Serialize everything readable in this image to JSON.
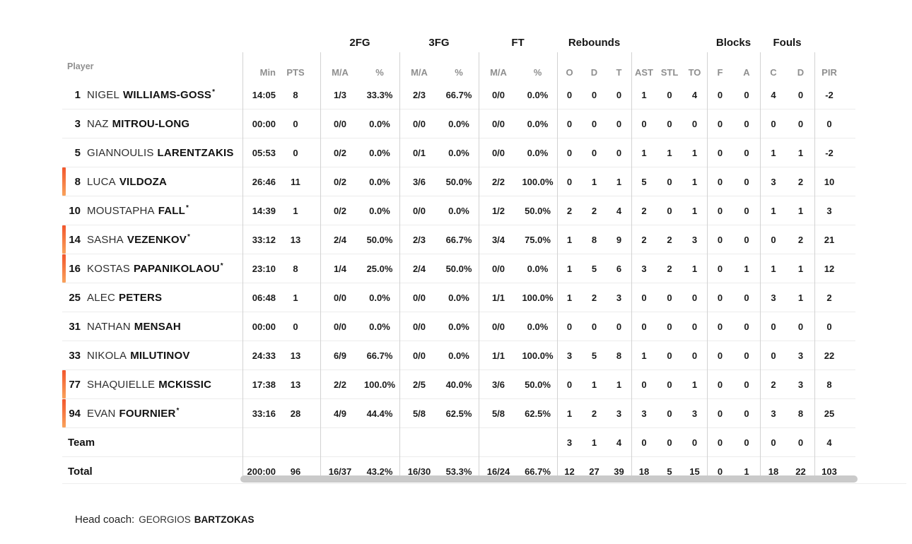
{
  "colors": {
    "accent_gradient_top": "#F2572D",
    "accent_gradient_bottom": "#F9A25C",
    "scrollbar_thumb": "#CACACA"
  },
  "star_symbol": "*",
  "header": {
    "player_label": "Player",
    "groups": [
      "2FG",
      "3FG",
      "FT",
      "Rebounds",
      "Blocks",
      "Fouls"
    ],
    "columns": [
      "Min",
      "PTS",
      "M/A",
      "%",
      "M/A",
      "%",
      "M/A",
      "%",
      "O",
      "D",
      "T",
      "AST",
      "STL",
      "TO",
      "F",
      "A",
      "C",
      "D",
      "PIR"
    ]
  },
  "players": [
    {
      "number": "1",
      "first": "NIGEL",
      "last": "WILLIAMS-GOSS",
      "starter": true,
      "on_court": false,
      "stats": [
        "14:05",
        "8",
        "1/3",
        "33.3%",
        "2/3",
        "66.7%",
        "0/0",
        "0.0%",
        "0",
        "0",
        "0",
        "1",
        "0",
        "4",
        "0",
        "0",
        "4",
        "0",
        "-2"
      ]
    },
    {
      "number": "3",
      "first": "NAZ",
      "last": "MITROU-LONG",
      "starter": false,
      "on_court": false,
      "stats": [
        "00:00",
        "0",
        "0/0",
        "0.0%",
        "0/0",
        "0.0%",
        "0/0",
        "0.0%",
        "0",
        "0",
        "0",
        "0",
        "0",
        "0",
        "0",
        "0",
        "0",
        "0",
        "0"
      ]
    },
    {
      "number": "5",
      "first": "GIANNOULIS",
      "last": "LARENTZAKIS",
      "starter": false,
      "on_court": false,
      "stats": [
        "05:53",
        "0",
        "0/2",
        "0.0%",
        "0/1",
        "0.0%",
        "0/0",
        "0.0%",
        "0",
        "0",
        "0",
        "1",
        "1",
        "1",
        "0",
        "0",
        "1",
        "1",
        "-2"
      ]
    },
    {
      "number": "8",
      "first": "LUCA",
      "last": "VILDOZA",
      "starter": false,
      "on_court": true,
      "stats": [
        "26:46",
        "11",
        "0/2",
        "0.0%",
        "3/6",
        "50.0%",
        "2/2",
        "100.0%",
        "0",
        "1",
        "1",
        "5",
        "0",
        "1",
        "0",
        "0",
        "3",
        "2",
        "10"
      ]
    },
    {
      "number": "10",
      "first": "MOUSTAPHA",
      "last": "FALL",
      "starter": true,
      "on_court": false,
      "stats": [
        "14:39",
        "1",
        "0/2",
        "0.0%",
        "0/0",
        "0.0%",
        "1/2",
        "50.0%",
        "2",
        "2",
        "4",
        "2",
        "0",
        "1",
        "0",
        "0",
        "1",
        "1",
        "3"
      ]
    },
    {
      "number": "14",
      "first": "SASHA",
      "last": "VEZENKOV",
      "starter": true,
      "on_court": true,
      "stats": [
        "33:12",
        "13",
        "2/4",
        "50.0%",
        "2/3",
        "66.7%",
        "3/4",
        "75.0%",
        "1",
        "8",
        "9",
        "2",
        "2",
        "3",
        "0",
        "0",
        "0",
        "2",
        "21"
      ]
    },
    {
      "number": "16",
      "first": "KOSTAS",
      "last": "PAPANIKOLAOU",
      "starter": true,
      "on_court": true,
      "stats": [
        "23:10",
        "8",
        "1/4",
        "25.0%",
        "2/4",
        "50.0%",
        "0/0",
        "0.0%",
        "1",
        "5",
        "6",
        "3",
        "2",
        "1",
        "0",
        "1",
        "1",
        "1",
        "12"
      ]
    },
    {
      "number": "25",
      "first": "ALEC",
      "last": "PETERS",
      "starter": false,
      "on_court": false,
      "stats": [
        "06:48",
        "1",
        "0/0",
        "0.0%",
        "0/0",
        "0.0%",
        "1/1",
        "100.0%",
        "1",
        "2",
        "3",
        "0",
        "0",
        "0",
        "0",
        "0",
        "3",
        "1",
        "2"
      ]
    },
    {
      "number": "31",
      "first": "NATHAN",
      "last": "MENSAH",
      "starter": false,
      "on_court": false,
      "stats": [
        "00:00",
        "0",
        "0/0",
        "0.0%",
        "0/0",
        "0.0%",
        "0/0",
        "0.0%",
        "0",
        "0",
        "0",
        "0",
        "0",
        "0",
        "0",
        "0",
        "0",
        "0",
        "0"
      ]
    },
    {
      "number": "33",
      "first": "NIKOLA",
      "last": "MILUTINOV",
      "starter": false,
      "on_court": false,
      "stats": [
        "24:33",
        "13",
        "6/9",
        "66.7%",
        "0/0",
        "0.0%",
        "1/1",
        "100.0%",
        "3",
        "5",
        "8",
        "1",
        "0",
        "0",
        "0",
        "0",
        "0",
        "3",
        "22"
      ]
    },
    {
      "number": "77",
      "first": "SHAQUIELLE",
      "last": "MCKISSIC",
      "starter": false,
      "on_court": true,
      "stats": [
        "17:38",
        "13",
        "2/2",
        "100.0%",
        "2/5",
        "40.0%",
        "3/6",
        "50.0%",
        "0",
        "1",
        "1",
        "0",
        "0",
        "1",
        "0",
        "0",
        "2",
        "3",
        "8"
      ]
    },
    {
      "number": "94",
      "first": "EVAN",
      "last": "FOURNIER",
      "starter": true,
      "on_court": true,
      "stats": [
        "33:16",
        "28",
        "4/9",
        "44.4%",
        "5/8",
        "62.5%",
        "5/8",
        "62.5%",
        "1",
        "2",
        "3",
        "3",
        "0",
        "3",
        "0",
        "0",
        "3",
        "8",
        "25"
      ]
    }
  ],
  "team_row": {
    "label": "Team",
    "stats": [
      "",
      "",
      "",
      "",
      "",
      "",
      "",
      "",
      "3",
      "1",
      "4",
      "0",
      "0",
      "0",
      "0",
      "0",
      "0",
      "0",
      "4"
    ]
  },
  "total_row": {
    "label": "Total",
    "stats": [
      "200:00",
      "96",
      "16/37",
      "43.2%",
      "16/30",
      "53.3%",
      "16/24",
      "66.7%",
      "12",
      "27",
      "39",
      "18",
      "5",
      "15",
      "0",
      "1",
      "18",
      "22",
      "103"
    ]
  },
  "footer": {
    "head_coach_label": "Head coach:",
    "coach_first": "GEORGIOS",
    "coach_last": "BARTZOKAS"
  }
}
